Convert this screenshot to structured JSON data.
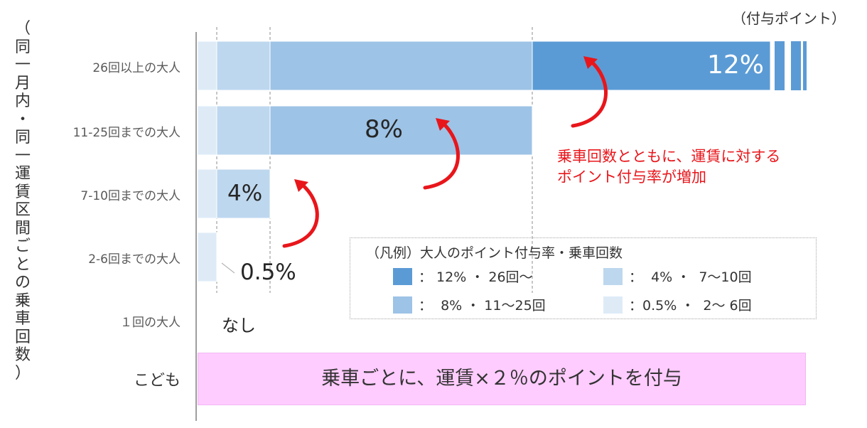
{
  "chart_data": {
    "type": "bar",
    "orientation": "horizontal",
    "stacked": true,
    "categories": [
      "26回以上の大人",
      "11-25回までの大人",
      "7-10回までの大人",
      "2-6回までの大人",
      "１回の大人"
    ],
    "tiers": [
      {
        "rate": 0.5,
        "color": "#deebf7"
      },
      {
        "rate": 4,
        "color": "#bdd7ee"
      },
      {
        "rate": 8,
        "color": "#9dc3e6"
      },
      {
        "rate": 12,
        "color": "#5b9bd5"
      }
    ],
    "values": [
      12,
      8,
      4,
      0.5,
      0
    ],
    "data_labels": [
      "12%",
      "8%",
      "4%",
      "0.5%",
      "なし"
    ],
    "y_axis_title": "（同一月内・同一運賃区間ごとの乗車回数）",
    "x_axis_title": "（付与ポイント）",
    "annotation": [
      "乗車回数とともに、運賃に対する",
      "ポイント付与率が増加"
    ],
    "legend": {
      "title": "（凡例）大人のポイント付与率・乗車回数",
      "placement": "center-right",
      "items": [
        {
          "text": "： 12% ・ 26回～",
          "color": "#5b9bd5"
        },
        {
          "text": "：  4% ・  7～10回",
          "color": "#bdd7ee"
        },
        {
          "text": "：  8% ・ 11～25回",
          "color": "#9dc3e6"
        },
        {
          "text": "：0.5% ・  2～ 6回",
          "color": "#deebf7"
        }
      ]
    },
    "children": {
      "label": "こども",
      "text": "乗車ごとに、運賃×２％のポイントを付与",
      "color": "#ffccff"
    }
  }
}
